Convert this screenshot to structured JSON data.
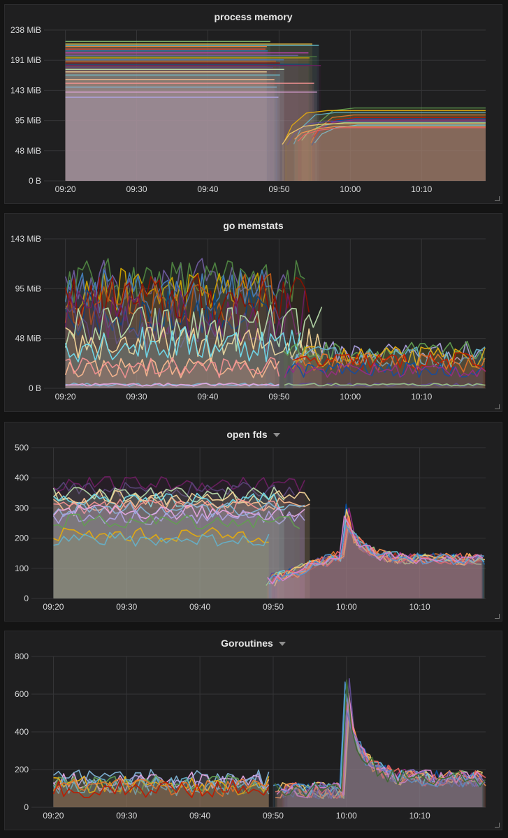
{
  "colors": {
    "panel_bg": "#1f1f20",
    "grid": "#353537",
    "palette": [
      "#7eb26d",
      "#eab839",
      "#6ed0e0",
      "#ef843c",
      "#e24d42",
      "#1f78c1",
      "#ba43a9",
      "#705da0",
      "#508642",
      "#cca300",
      "#447ebc",
      "#c15c17",
      "#890f02",
      "#0a437c",
      "#6d1f62",
      "#584477",
      "#b7dbab",
      "#f4d598",
      "#70dbed",
      "#f9ba8f",
      "#f29191",
      "#82b5d8",
      "#e5a8e2",
      "#aea2e0",
      "#629e51",
      "#e5ac0e",
      "#64b0c8",
      "#e0752d",
      "#bf1b00",
      "#0a50a1",
      "#962d82",
      "#614d93",
      "#9ac48a",
      "#f2c96d",
      "#65c5db",
      "#f9934e",
      "#ea6460",
      "#5195ce",
      "#d683ce",
      "#806eb7",
      "#3f6833",
      "#967302",
      "#2f575e",
      "#99440a",
      "#58140c",
      "#052b51",
      "#511749",
      "#3f2b5b",
      "#e0f9d7",
      "#fceaca",
      "#cffaff",
      "#f9e2d2",
      "#fce2de",
      "#badff4",
      "#f9d9f9",
      "#dedaf7"
    ]
  },
  "chart_data": [
    {
      "type": "line",
      "title": "process memory",
      "has_menu": false,
      "x_ticks": [
        "09:20",
        "09:30",
        "09:40",
        "09:50",
        "10:00",
        "10:10"
      ],
      "y_ticks": [
        "0 B",
        "48 MiB",
        "95 MiB",
        "143 MiB",
        "191 MiB",
        "238 MiB"
      ],
      "ylim": [
        0,
        238
      ],
      "unit": "MiB",
      "fill": true,
      "group_a": {
        "x_start": "09:20",
        "x_end_min": "09:48",
        "x_end_max": "09:56",
        "levels": [
          220,
          216,
          214,
          212,
          208,
          205,
          202,
          198,
          196,
          194,
          191,
          189,
          186,
          184,
          182,
          179,
          176,
          172,
          167,
          160,
          154,
          148,
          140,
          132
        ]
      },
      "group_b": {
        "x_start": "09:49",
        "x_start_max": "09:55",
        "x_end": "10:19",
        "start_levels": [
          55,
          70
        ],
        "levels": [
          115,
          111,
          108,
          104,
          100,
          98,
          96,
          94,
          92,
          90,
          88,
          86,
          84
        ]
      }
    },
    {
      "type": "line",
      "title": "go memstats",
      "has_menu": false,
      "x_ticks": [
        "09:20",
        "09:30",
        "09:40",
        "09:50",
        "10:00",
        "10:10"
      ],
      "y_ticks": [
        "0 B",
        "48 MiB",
        "95 MiB",
        "143 MiB"
      ],
      "ylim": [
        0,
        143
      ],
      "unit": "MiB",
      "fill": true,
      "group_a": {
        "x_start": "09:20",
        "x_end_min": "09:48",
        "x_end_max": "09:57",
        "bands": [
          [
            80,
            125
          ],
          [
            70,
            115
          ],
          [
            60,
            110
          ],
          [
            45,
            95
          ],
          [
            35,
            80
          ],
          [
            25,
            60
          ],
          [
            10,
            30
          ],
          [
            2,
            5
          ]
        ]
      },
      "group_b": {
        "x_start": "09:50",
        "x_end": "10:19",
        "bands": [
          [
            25,
            45
          ],
          [
            20,
            40
          ],
          [
            15,
            35
          ],
          [
            10,
            25
          ],
          [
            2,
            5
          ]
        ]
      }
    },
    {
      "type": "line",
      "title": "open fds",
      "has_menu": true,
      "x_ticks": [
        "09:20",
        "09:30",
        "09:40",
        "09:50",
        "10:00",
        "10:10"
      ],
      "y_ticks": [
        "0",
        "100",
        "200",
        "300",
        "400",
        "500"
      ],
      "ylim": [
        0,
        500
      ],
      "fill": true,
      "group_a": {
        "x_start": "09:20",
        "x_end_min": "09:48",
        "x_end_max": "09:56",
        "levels": [
          380,
          360,
          345,
          335,
          325,
          315,
          305,
          295,
          285,
          270,
          255,
          210,
          195
        ],
        "noise": 25
      },
      "group_b": {
        "x_start": "09:49",
        "x_end": "10:19",
        "start_level": 60,
        "ramp_to": 150,
        "spike_at": "10:00",
        "spike_peak": 310,
        "after_level": 130,
        "noise": 20
      }
    },
    {
      "type": "line",
      "title": "Goroutines",
      "has_menu": true,
      "x_ticks": [
        "09:20",
        "09:30",
        "09:40",
        "09:50",
        "10:00",
        "10:10"
      ],
      "y_ticks": [
        "0",
        "200",
        "400",
        "600",
        "800"
      ],
      "ylim": [
        0,
        800
      ],
      "fill": true,
      "group_a": {
        "x_start": "09:20",
        "x_end": "09:50",
        "levels": [
          150,
          140,
          130,
          120,
          115,
          110,
          105,
          100
        ],
        "noise": 50
      },
      "group_b": {
        "x_start": "09:50",
        "x_end": "10:19",
        "start_level": 90,
        "spike_at": "10:00",
        "spike_peak": 660,
        "after_level": 150,
        "noise": 45
      }
    }
  ]
}
